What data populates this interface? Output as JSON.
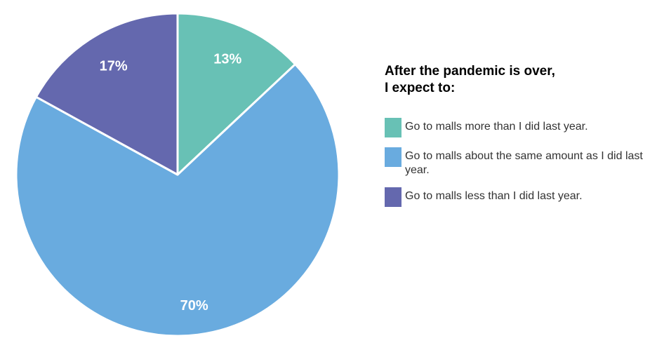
{
  "chart_data": {
    "type": "pie",
    "title": "After the pandemic is over,\nI expect to:",
    "title_lines": [
      "After the pandemic is over,",
      "I expect to:"
    ],
    "legend_position": "right",
    "slices": [
      {
        "label": "Go to malls more than I did last year.",
        "value": 13,
        "display": "13%",
        "color": "#68c1b5"
      },
      {
        "label": "Go to malls about the same amount as I did last year.",
        "value": 70,
        "display": "70%",
        "color": "#69abdf"
      },
      {
        "label": "Go to malls less than I did last year.",
        "value": 17,
        "display": "17%",
        "color": "#6468ae"
      }
    ]
  }
}
